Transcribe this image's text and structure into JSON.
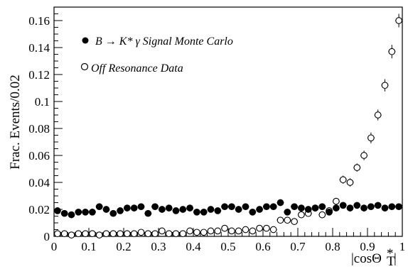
{
  "chart_data": {
    "type": "scatter",
    "ylabel": "Frac. Events/0.02",
    "xlabel": "|cosΘ*T|",
    "xlim": [
      0,
      1
    ],
    "ylim": [
      0,
      0.17
    ],
    "xticks": [
      "0",
      "0.1",
      "0.2",
      "0.3",
      "0.4",
      "0.5",
      "0.6",
      "0.7",
      "0.8",
      "0.9",
      "1"
    ],
    "yticks": [
      "0",
      "0.02",
      "0.04",
      "0.06",
      "0.08",
      "0.1",
      "0.12",
      "0.14",
      "0.16"
    ],
    "legend_placement": "top-left",
    "x": [
      0.01,
      0.03,
      0.05,
      0.07,
      0.09,
      0.11,
      0.13,
      0.15,
      0.17,
      0.19,
      0.21,
      0.23,
      0.25,
      0.27,
      0.29,
      0.31,
      0.33,
      0.35,
      0.37,
      0.39,
      0.41,
      0.43,
      0.45,
      0.47,
      0.49,
      0.51,
      0.53,
      0.55,
      0.57,
      0.59,
      0.61,
      0.63,
      0.65,
      0.67,
      0.69,
      0.71,
      0.73,
      0.75,
      0.77,
      0.79,
      0.81,
      0.83,
      0.85,
      0.87,
      0.89,
      0.91,
      0.93,
      0.95,
      0.97,
      0.99
    ],
    "series": [
      {
        "name": "B → K* γ Signal Monte Carlo",
        "marker": "filled-circle",
        "values": [
          0.019,
          0.017,
          0.016,
          0.018,
          0.018,
          0.018,
          0.022,
          0.02,
          0.017,
          0.019,
          0.021,
          0.021,
          0.022,
          0.017,
          0.022,
          0.02,
          0.021,
          0.019,
          0.02,
          0.021,
          0.018,
          0.018,
          0.02,
          0.019,
          0.022,
          0.022,
          0.02,
          0.022,
          0.018,
          0.02,
          0.022,
          0.022,
          0.025,
          0.018,
          0.022,
          0.021,
          0.02,
          0.021,
          0.022,
          0.018,
          0.021,
          0.023,
          0.021,
          0.023,
          0.021,
          0.022,
          0.023,
          0.021,
          0.022,
          0.022
        ],
        "errors": [
          0.002,
          0.002,
          0.002,
          0.002,
          0.002,
          0.002,
          0.002,
          0.002,
          0.002,
          0.002,
          0.002,
          0.002,
          0.002,
          0.002,
          0.002,
          0.002,
          0.002,
          0.002,
          0.002,
          0.002,
          0.002,
          0.002,
          0.002,
          0.002,
          0.002,
          0.002,
          0.002,
          0.002,
          0.002,
          0.002,
          0.002,
          0.002,
          0.002,
          0.002,
          0.002,
          0.002,
          0.002,
          0.002,
          0.002,
          0.002,
          0.002,
          0.002,
          0.002,
          0.002,
          0.002,
          0.002,
          0.002,
          0.002,
          0.002,
          0.002
        ]
      },
      {
        "name": "Off Resonance Data",
        "marker": "open-circle",
        "values": [
          0.002,
          0.002,
          0.001,
          0.002,
          0.002,
          0.002,
          0.001,
          0.002,
          0.002,
          0.002,
          0.002,
          0.002,
          0.003,
          0.002,
          0.002,
          0.004,
          0.002,
          0.002,
          0.002,
          0.004,
          0.003,
          0.003,
          0.004,
          0.004,
          0.006,
          0.004,
          0.004,
          0.005,
          0.004,
          0.006,
          0.006,
          0.005,
          0.012,
          0.012,
          0.011,
          0.016,
          0.017,
          0.021,
          0.016,
          0.019,
          0.026,
          0.042,
          0.04,
          0.051,
          0.06,
          0.073,
          0.09,
          0.112,
          0.137,
          0.16
        ],
        "errors": [
          0.001,
          0.001,
          0.001,
          0.001,
          0.001,
          0.001,
          0.001,
          0.001,
          0.001,
          0.001,
          0.001,
          0.001,
          0.001,
          0.001,
          0.001,
          0.001,
          0.001,
          0.001,
          0.001,
          0.001,
          0.001,
          0.001,
          0.001,
          0.001,
          0.001,
          0.001,
          0.001,
          0.001,
          0.001,
          0.001,
          0.001,
          0.001,
          0.0015,
          0.0015,
          0.0015,
          0.002,
          0.002,
          0.002,
          0.002,
          0.002,
          0.0025,
          0.003,
          0.003,
          0.003,
          0.0035,
          0.004,
          0.004,
          0.0045,
          0.005,
          0.005
        ]
      }
    ]
  }
}
